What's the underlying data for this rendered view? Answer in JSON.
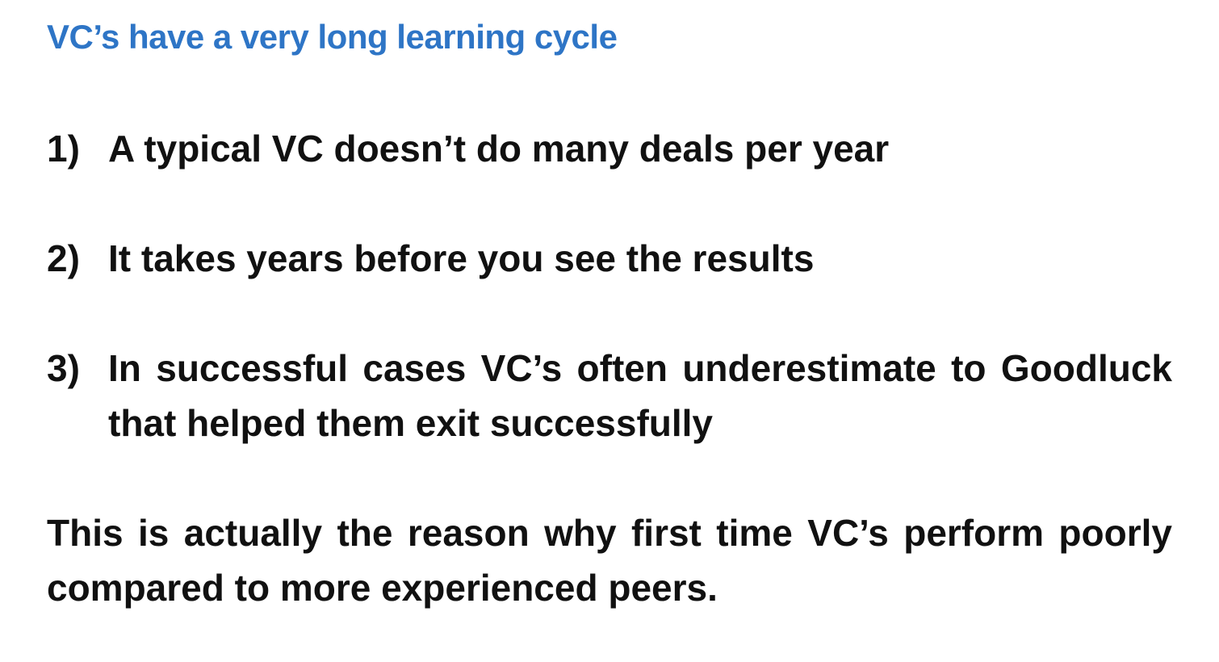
{
  "slide": {
    "title": "VC’s have a very long learning cycle",
    "title_color": "#2e75c6",
    "items": [
      {
        "number": "1)",
        "text": "A typical VC doesn’t do many deals per year"
      },
      {
        "number": "2)",
        "text": "It takes years before you see the results"
      },
      {
        "number": "3)",
        "text": "In successful cases VC’s often underestimate to Goodluck that helped them exit successfully"
      }
    ],
    "conclusion": "This is actually the reason why first time VC’s perform poorly compared to more experienced peers."
  }
}
